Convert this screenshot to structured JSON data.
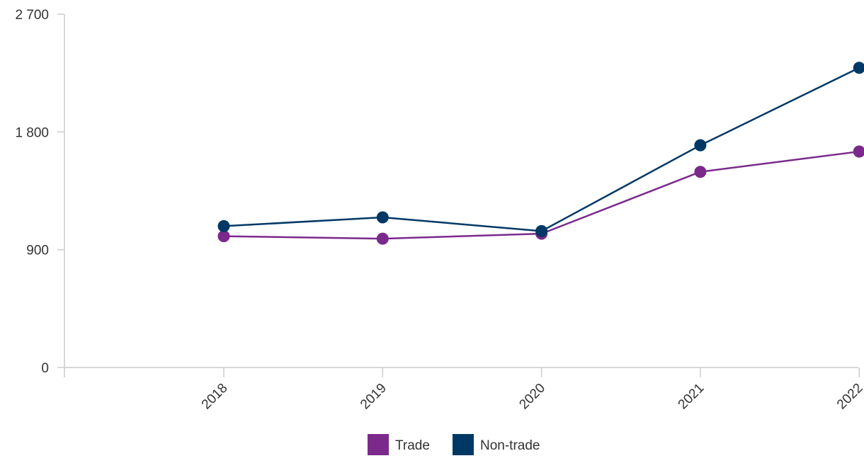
{
  "chart_data": {
    "type": "line",
    "categories": [
      "2018",
      "2019",
      "2020",
      "2021",
      "2022"
    ],
    "series": [
      {
        "name": "Trade",
        "color": "#7b2a8c",
        "values": [
          1003,
          984,
          1022,
          1495,
          1650
        ]
      },
      {
        "name": "Non-trade",
        "color": "#003865",
        "values": [
          1080,
          1147,
          1042,
          1698,
          2290
        ]
      }
    ],
    "ylim": [
      0,
      2700
    ],
    "yticks": [
      0,
      900,
      1800,
      2700
    ],
    "ytick_labels": [
      "0",
      "900",
      "1 800",
      "2 700"
    ],
    "title": "",
    "xlabel": "",
    "ylabel": "",
    "grid": false,
    "legend_position": "bottom-center"
  }
}
